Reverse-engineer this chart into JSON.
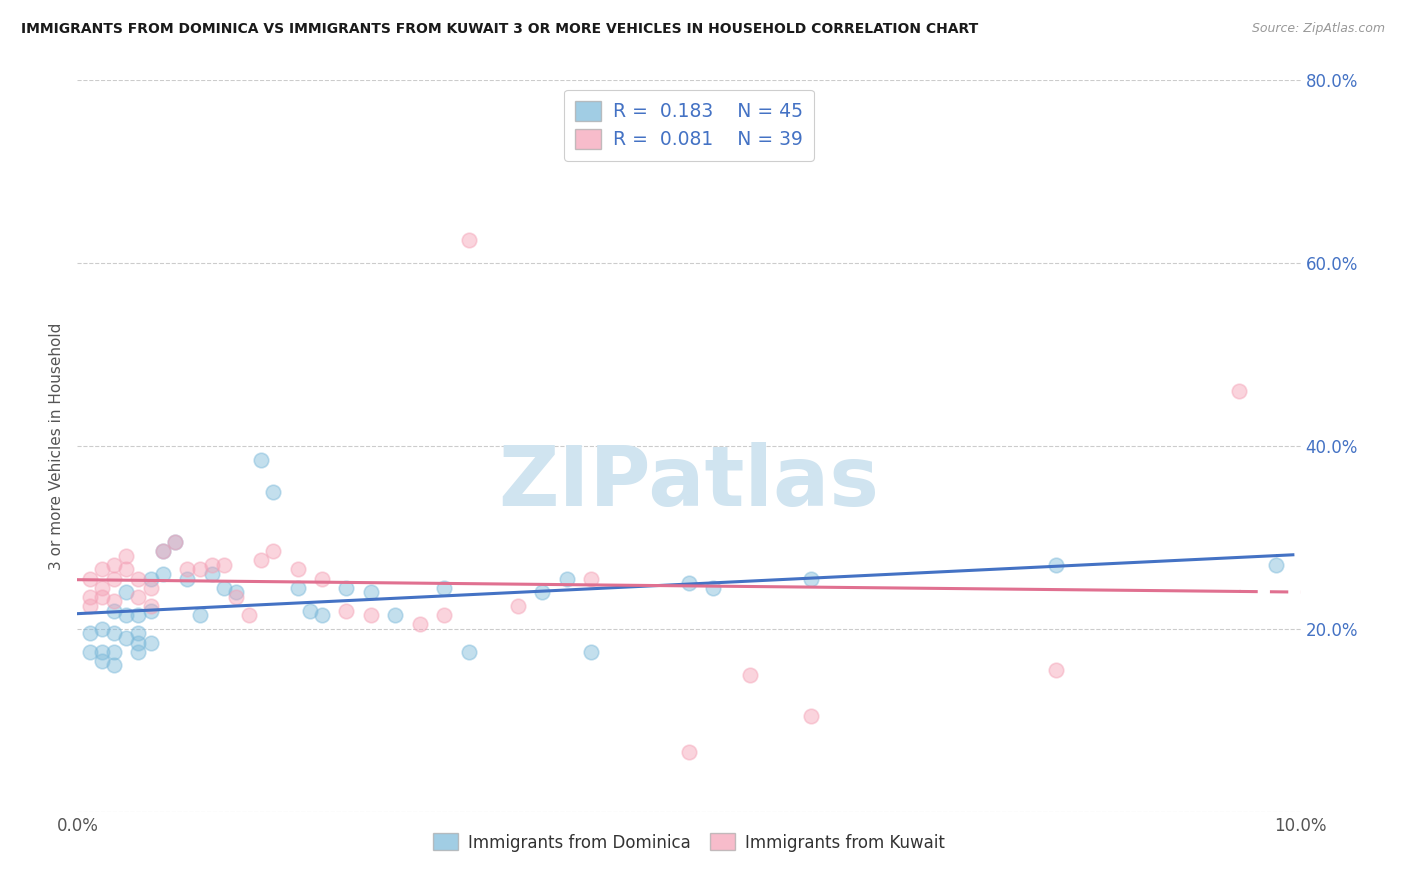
{
  "title": "IMMIGRANTS FROM DOMINICA VS IMMIGRANTS FROM KUWAIT 3 OR MORE VEHICLES IN HOUSEHOLD CORRELATION CHART",
  "source": "Source: ZipAtlas.com",
  "ylabel": "3 or more Vehicles in Household",
  "dominica_label": "Immigrants from Dominica",
  "kuwait_label": "Immigrants from Kuwait",
  "xlim": [
    0.0,
    0.1
  ],
  "ylim": [
    0.0,
    0.8
  ],
  "x_ticks": [
    0.0,
    0.02,
    0.04,
    0.06,
    0.08,
    0.1
  ],
  "x_tick_labels": [
    "0.0%",
    "",
    "",
    "",
    "",
    "10.0%"
  ],
  "y_ticks": [
    0.0,
    0.2,
    0.4,
    0.6,
    0.8
  ],
  "y_tick_labels_right": [
    "",
    "20.0%",
    "40.0%",
    "60.0%",
    "80.0%"
  ],
  "dominica_R": 0.183,
  "dominica_N": 45,
  "kuwait_R": 0.081,
  "kuwait_N": 39,
  "dominica_color": "#7ab8d9",
  "kuwait_color": "#f4a0b5",
  "dominica_line_color": "#4472c4",
  "kuwait_line_color": "#e07090",
  "legend_text_color": "#4472c4",
  "right_axis_color": "#4472c4",
  "watermark_color": "#d0e4f0",
  "dominica_x": [
    0.001,
    0.001,
    0.002,
    0.002,
    0.002,
    0.003,
    0.003,
    0.003,
    0.003,
    0.004,
    0.004,
    0.004,
    0.005,
    0.005,
    0.005,
    0.005,
    0.006,
    0.006,
    0.006,
    0.007,
    0.007,
    0.008,
    0.009,
    0.01,
    0.011,
    0.012,
    0.013,
    0.015,
    0.016,
    0.018,
    0.019,
    0.02,
    0.022,
    0.024,
    0.026,
    0.03,
    0.032,
    0.038,
    0.04,
    0.042,
    0.05,
    0.052,
    0.06,
    0.08,
    0.098
  ],
  "dominica_y": [
    0.195,
    0.175,
    0.2,
    0.175,
    0.165,
    0.22,
    0.195,
    0.175,
    0.16,
    0.24,
    0.215,
    0.19,
    0.215,
    0.195,
    0.185,
    0.175,
    0.255,
    0.22,
    0.185,
    0.285,
    0.26,
    0.295,
    0.255,
    0.215,
    0.26,
    0.245,
    0.24,
    0.385,
    0.35,
    0.245,
    0.22,
    0.215,
    0.245,
    0.24,
    0.215,
    0.245,
    0.175,
    0.24,
    0.255,
    0.175,
    0.25,
    0.245,
    0.255,
    0.27,
    0.27
  ],
  "kuwait_x": [
    0.001,
    0.001,
    0.001,
    0.002,
    0.002,
    0.002,
    0.003,
    0.003,
    0.003,
    0.004,
    0.004,
    0.005,
    0.005,
    0.006,
    0.006,
    0.007,
    0.008,
    0.009,
    0.01,
    0.011,
    0.012,
    0.013,
    0.014,
    0.015,
    0.016,
    0.018,
    0.02,
    0.022,
    0.024,
    0.028,
    0.03,
    0.032,
    0.036,
    0.042,
    0.05,
    0.055,
    0.06,
    0.08,
    0.095
  ],
  "kuwait_y": [
    0.255,
    0.235,
    0.225,
    0.265,
    0.245,
    0.235,
    0.27,
    0.255,
    0.23,
    0.28,
    0.265,
    0.255,
    0.235,
    0.245,
    0.225,
    0.285,
    0.295,
    0.265,
    0.265,
    0.27,
    0.27,
    0.235,
    0.215,
    0.275,
    0.285,
    0.265,
    0.255,
    0.22,
    0.215,
    0.205,
    0.215,
    0.625,
    0.225,
    0.255,
    0.065,
    0.15,
    0.105,
    0.155,
    0.46
  ]
}
